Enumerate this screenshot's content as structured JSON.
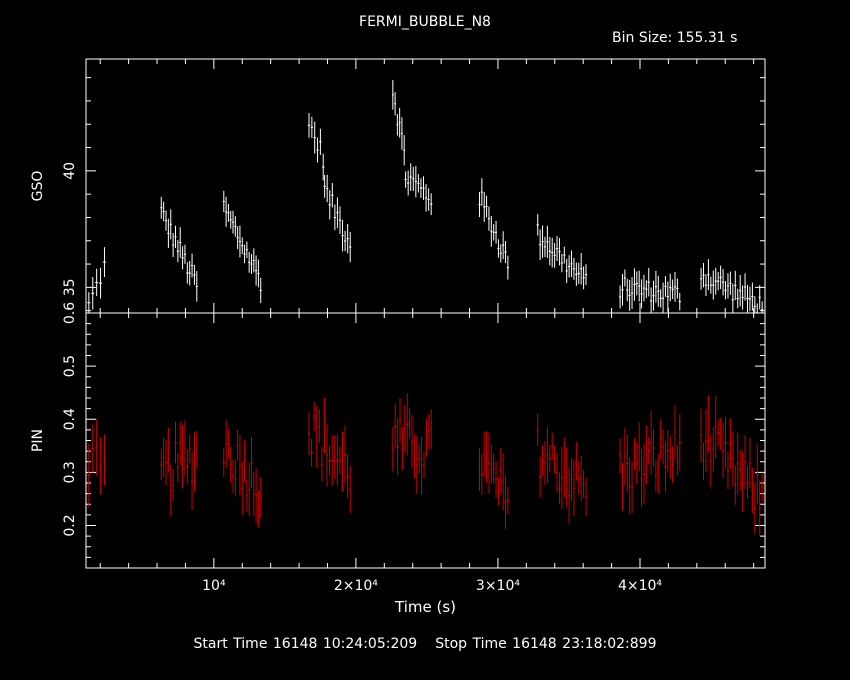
{
  "title": "FERMI_BUBBLE_N8",
  "bin_size_label": "Bin Size: 155.31 s",
  "start_time_label": "Start Time 16148 10:24:05:209",
  "stop_time_label": "Stop Time 16148 23:18:02:899",
  "colors": {
    "background": "#000000",
    "axes": "#ffffff",
    "gso": "#ffffff",
    "pin": "#cc0000"
  },
  "chart_data": [
    {
      "type": "scatter",
      "panel": "top",
      "ylabel": "GSO",
      "xlabel": "",
      "xlim": [
        1000,
        48800
      ],
      "ylim": [
        33.9,
        44.8
      ],
      "yticks": [
        35,
        40
      ],
      "grid": false,
      "error_bars": true,
      "segments": [
        {
          "x0": 1200,
          "x1": 2300,
          "y0": 34.2,
          "y1": 35.9,
          "n": 5
        },
        {
          "x0": 6300,
          "x1": 8800,
          "y0": 38.2,
          "y1": 35.1,
          "n": 16
        },
        {
          "x0": 10700,
          "x1": 13300,
          "y0": 38.4,
          "y1": 35.3,
          "n": 17
        },
        {
          "x0": 16700,
          "x1": 17700,
          "y0": 42.0,
          "y1": 40.6,
          "n": 6
        },
        {
          "x0": 17800,
          "x1": 19600,
          "y0": 39.2,
          "y1": 36.9,
          "n": 11
        },
        {
          "x0": 22600,
          "x1": 23400,
          "y0": 43.5,
          "y1": 40.8,
          "n": 6
        },
        {
          "x0": 23500,
          "x1": 25300,
          "y0": 39.8,
          "y1": 38.8,
          "n": 11
        },
        {
          "x0": 28700,
          "x1": 30700,
          "y0": 38.9,
          "y1": 36.1,
          "n": 13
        },
        {
          "x0": 32800,
          "x1": 36200,
          "y0": 37.3,
          "y1": 35.2,
          "n": 21
        },
        {
          "x0": 38600,
          "x1": 42800,
          "y0": 35.0,
          "y1": 34.7,
          "n": 26
        },
        {
          "x0": 44300,
          "x1": 48600,
          "y0": 35.6,
          "y1": 34.2,
          "n": 26
        }
      ]
    },
    {
      "type": "scatter",
      "panel": "bottom",
      "ylabel": "PIN",
      "xlabel": "Time (s)",
      "xlim": [
        1000,
        48800
      ],
      "ylim": [
        0.12,
        0.6
      ],
      "yticks": [
        0.2,
        0.3,
        0.4,
        0.5,
        0.6
      ],
      "xticks": [
        10000,
        20000,
        30000,
        40000
      ],
      "xtick_labels": [
        "10⁴",
        "2×10⁴",
        "3×10⁴",
        "4×10⁴"
      ],
      "grid": false,
      "error_bars": true,
      "segments": [
        {
          "x0": 1200,
          "x1": 2300,
          "y0": 0.33,
          "y1": 0.28,
          "n": 5
        },
        {
          "x0": 6300,
          "x1": 8800,
          "y0": 0.3,
          "y1": 0.33,
          "n": 16
        },
        {
          "x0": 10700,
          "x1": 13300,
          "y0": 0.35,
          "y1": 0.27,
          "n": 17
        },
        {
          "x0": 16700,
          "x1": 19600,
          "y0": 0.38,
          "y1": 0.3,
          "n": 17
        },
        {
          "x0": 22600,
          "x1": 25300,
          "y0": 0.36,
          "y1": 0.34,
          "n": 17
        },
        {
          "x0": 28700,
          "x1": 30700,
          "y0": 0.33,
          "y1": 0.24,
          "n": 13
        },
        {
          "x0": 32800,
          "x1": 36200,
          "y0": 0.34,
          "y1": 0.27,
          "n": 21
        },
        {
          "x0": 38600,
          "x1": 42800,
          "y0": 0.3,
          "y1": 0.34,
          "n": 26
        },
        {
          "x0": 44300,
          "x1": 48600,
          "y0": 0.37,
          "y1": 0.25,
          "n": 26
        }
      ]
    }
  ]
}
